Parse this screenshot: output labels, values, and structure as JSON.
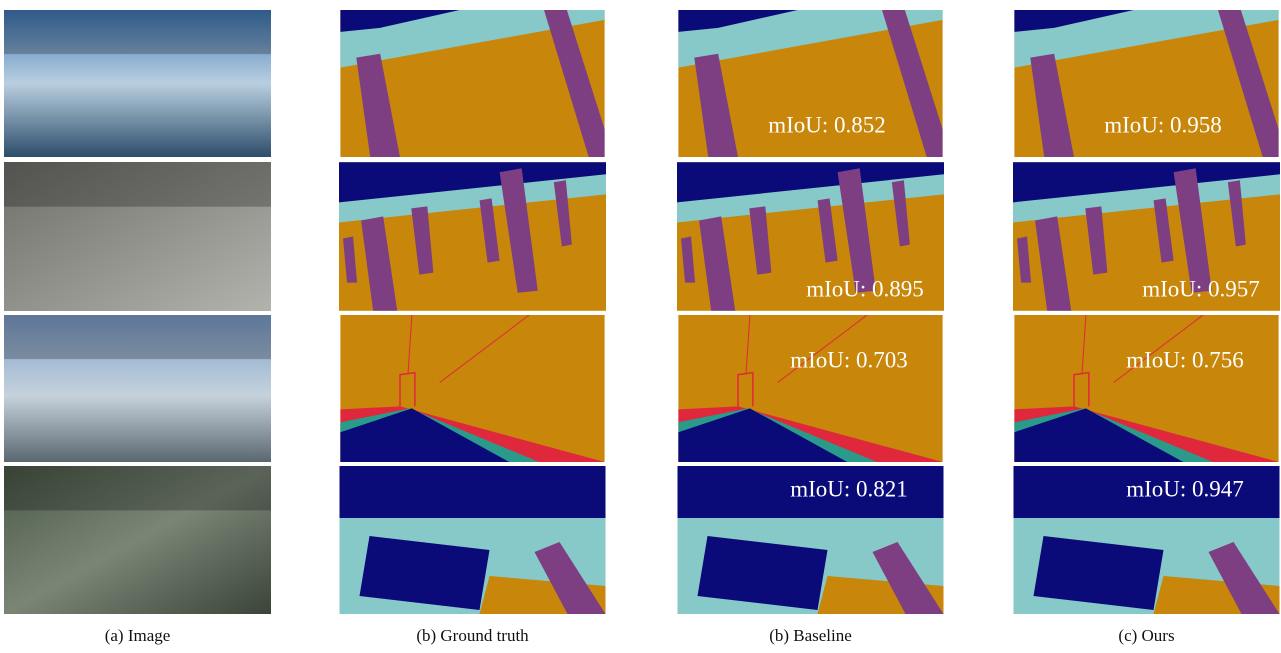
{
  "figure": {
    "columns": [
      {
        "caption": "(a) Image"
      },
      {
        "caption": "(b) Ground truth"
      },
      {
        "caption": "(b) Baseline",
        "scores": [
          "mIoU: 0.852",
          "mIoU: 0.895",
          "mIoU: 0.703",
          "mIoU: 0.821"
        ]
      },
      {
        "caption": "(c) Ours",
        "scores": [
          "mIoU: 0.958",
          "mIoU: 0.957",
          "mIoU: 0.756",
          "mIoU: 0.947"
        ]
      }
    ]
  }
}
